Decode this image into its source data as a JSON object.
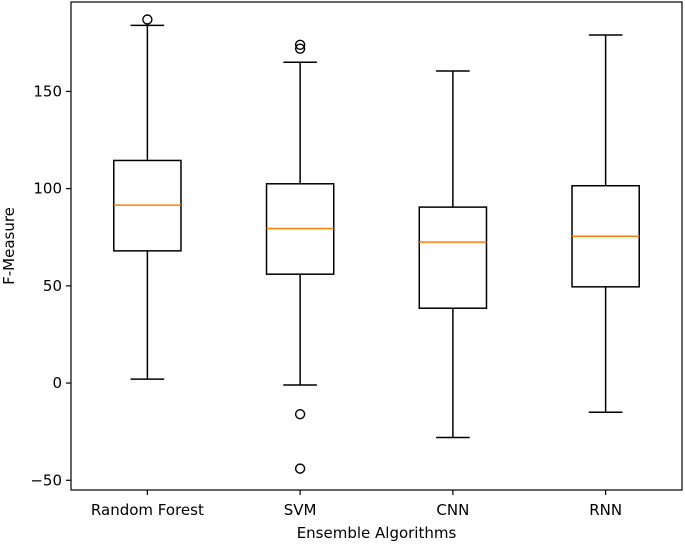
{
  "chart_data": {
    "type": "boxplot",
    "title": "",
    "xlabel": "Ensemble Algorithms",
    "ylabel": "F-Measure",
    "ylim": [
      -55,
      196
    ],
    "yticks": [
      -50,
      0,
      50,
      100,
      150
    ],
    "grid": false,
    "colors": {
      "box": "#000000",
      "median": "#ff7f0e",
      "flier": "#000000"
    },
    "categories": [
      "Random Forest",
      "SVM",
      "CNN",
      "RNN"
    ],
    "boxes": [
      {
        "name": "Random Forest",
        "whisker_low": 2,
        "q1": 68,
        "median": 91.5,
        "q3": 114.5,
        "whisker_high": 184,
        "fliers": [
          187
        ]
      },
      {
        "name": "SVM",
        "whisker_low": -1,
        "q1": 56,
        "median": 79.5,
        "q3": 102.5,
        "whisker_high": 165,
        "fliers": [
          -16,
          -44,
          172,
          174
        ]
      },
      {
        "name": "CNN",
        "whisker_low": -28,
        "q1": 38.5,
        "median": 72.5,
        "q3": 90.5,
        "whisker_high": 160.5,
        "fliers": []
      },
      {
        "name": "RNN",
        "whisker_low": -15,
        "q1": 49.5,
        "median": 75.5,
        "q3": 101.5,
        "whisker_high": 179,
        "fliers": []
      }
    ]
  }
}
